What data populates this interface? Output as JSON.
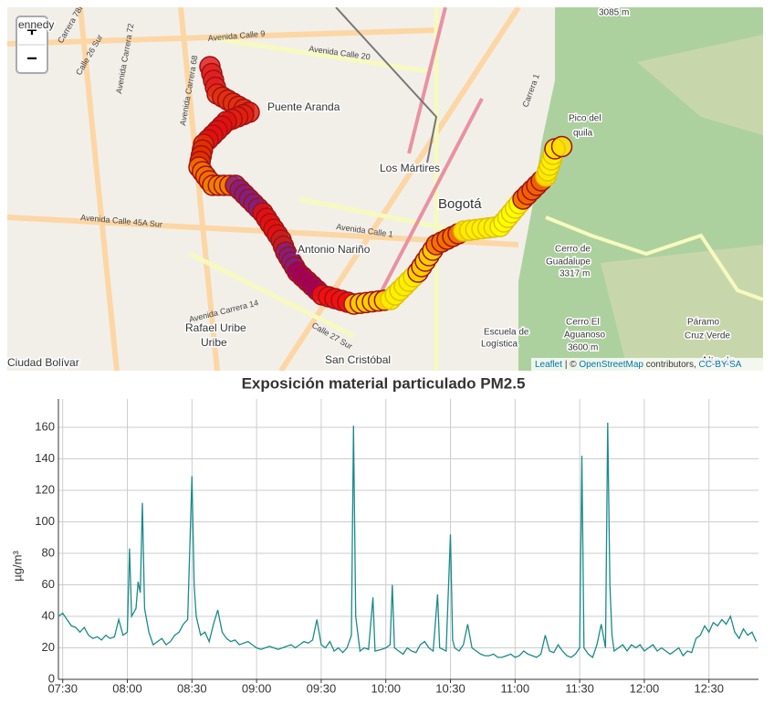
{
  "map": {
    "zoom_in": "+",
    "zoom_out": "−",
    "places": [
      "ennedy",
      "Puente Aranda",
      "Los Mártires",
      "Bogotá",
      "Antonio Nariño",
      "Rafael Uribe",
      "Uribe",
      "San Cristóbal",
      "Ciudad Bolívar",
      "Pico del",
      "quila",
      "Cerro de",
      "Guadalupe",
      "3317 m",
      "Cerro El",
      "Aguanoso",
      "3600 m",
      "Páramo",
      "Cruz Verde",
      "Escuela de",
      "Logística",
      "3085 m",
      "Alto de"
    ],
    "roads": [
      "Avenida Calle 9",
      "Avenida Calle 20",
      "Avenida Calle 45A Sur",
      "Avenida Calle 1",
      "Avenida Carrera 14",
      "Avenida Carrera 68",
      "Avenida Carrera 72",
      "Carrera 78K",
      "Calle 26 Sur",
      "Calle 27 Sur",
      "Carrera 1"
    ],
    "attribution": [
      "Leaflet",
      "| ©",
      "OpenStreetMap",
      "contributors,",
      "CC-BY-SA"
    ]
  },
  "chart_data": {
    "type": "line",
    "title": "Exposición material particulado PM2.5",
    "y_label": "µg/m³",
    "color": "#1a8a8a",
    "grid": true,
    "xlim": [
      "07:28",
      "12:53"
    ],
    "xticks": [
      "07:30",
      "08:00",
      "08:30",
      "09:00",
      "09:30",
      "10:00",
      "10:30",
      "11:00",
      "11:30",
      "12:00",
      "12:30"
    ],
    "ylim": [
      0,
      178
    ],
    "yticks": [
      0,
      20,
      40,
      60,
      80,
      100,
      120,
      140,
      160
    ],
    "x": [
      "07:28",
      "07:30",
      "07:32",
      "07:34",
      "07:36",
      "07:38",
      "07:40",
      "07:42",
      "07:44",
      "07:46",
      "07:48",
      "07:50",
      "07:52",
      "07:54",
      "07:56",
      "07:58",
      "08:00",
      "08:01",
      "08:02",
      "08:04",
      "08:05",
      "08:06",
      "08:07",
      "08:08",
      "08:10",
      "08:12",
      "08:14",
      "08:16",
      "08:18",
      "08:20",
      "08:22",
      "08:24",
      "08:26",
      "08:28",
      "08:30",
      "08:31",
      "08:32",
      "08:34",
      "08:36",
      "08:38",
      "08:40",
      "08:42",
      "08:44",
      "08:46",
      "08:48",
      "08:50",
      "08:52",
      "08:54",
      "08:56",
      "08:58",
      "09:00",
      "09:02",
      "09:04",
      "09:06",
      "09:08",
      "09:10",
      "09:12",
      "09:14",
      "09:16",
      "09:18",
      "09:20",
      "09:22",
      "09:24",
      "09:26",
      "09:28",
      "09:30",
      "09:32",
      "09:34",
      "09:36",
      "09:38",
      "09:40",
      "09:42",
      "09:44",
      "09:45",
      "09:46",
      "09:48",
      "09:50",
      "09:52",
      "09:54",
      "09:55",
      "09:58",
      "10:00",
      "10:02",
      "10:03",
      "10:04",
      "10:06",
      "10:08",
      "10:10",
      "10:12",
      "10:14",
      "10:16",
      "10:18",
      "10:20",
      "10:22",
      "10:24",
      "10:25",
      "10:28",
      "10:30",
      "10:31",
      "10:32",
      "10:34",
      "10:36",
      "10:38",
      "10:40",
      "10:42",
      "10:44",
      "10:46",
      "10:48",
      "10:50",
      "10:52",
      "10:54",
      "10:56",
      "10:58",
      "11:00",
      "11:02",
      "11:04",
      "11:06",
      "11:08",
      "11:10",
      "11:12",
      "11:14",
      "11:16",
      "11:18",
      "11:20",
      "11:22",
      "11:24",
      "11:26",
      "11:28",
      "11:30",
      "11:31",
      "11:32",
      "11:34",
      "11:36",
      "11:38",
      "11:40",
      "11:42",
      "11:43",
      "11:44",
      "11:45",
      "11:46",
      "11:48",
      "11:50",
      "11:52",
      "11:54",
      "11:56",
      "11:58",
      "12:00",
      "12:02",
      "12:04",
      "12:06",
      "12:08",
      "12:10",
      "12:12",
      "12:14",
      "12:16",
      "12:18",
      "12:20",
      "12:22",
      "12:24",
      "12:26",
      "12:28",
      "12:30",
      "12:32",
      "12:34",
      "12:36",
      "12:38",
      "12:40",
      "12:42",
      "12:44",
      "12:46",
      "12:48",
      "12:50",
      "12:52"
    ],
    "values": [
      40,
      42,
      38,
      34,
      33,
      30,
      33,
      28,
      26,
      27,
      25,
      28,
      26,
      27,
      38,
      28,
      30,
      83,
      40,
      45,
      62,
      55,
      112,
      45,
      30,
      22,
      24,
      26,
      22,
      24,
      28,
      30,
      35,
      38,
      129,
      60,
      40,
      28,
      30,
      24,
      35,
      44,
      30,
      26,
      24,
      25,
      22,
      23,
      24,
      22,
      20,
      19,
      20,
      21,
      20,
      19,
      20,
      21,
      22,
      20,
      22,
      24,
      23,
      25,
      38,
      22,
      20,
      24,
      18,
      20,
      17,
      20,
      28,
      161,
      40,
      18,
      20,
      19,
      52,
      18,
      19,
      20,
      22,
      60,
      20,
      18,
      16,
      20,
      18,
      17,
      22,
      24,
      20,
      18,
      54,
      20,
      18,
      92,
      25,
      20,
      18,
      22,
      35,
      20,
      18,
      16,
      15,
      15,
      16,
      14,
      14,
      15,
      16,
      14,
      15,
      18,
      16,
      15,
      14,
      16,
      28,
      18,
      17,
      22,
      18,
      15,
      14,
      16,
      20,
      142,
      20,
      16,
      14,
      22,
      35,
      20,
      163,
      60,
      28,
      18,
      20,
      22,
      18,
      22,
      20,
      22,
      18,
      20,
      22,
      18,
      20,
      18,
      16,
      18,
      20,
      15,
      18,
      17,
      26,
      28,
      34,
      30,
      36,
      34,
      38,
      35,
      40,
      30,
      26,
      32,
      28,
      30,
      24
    ]
  }
}
